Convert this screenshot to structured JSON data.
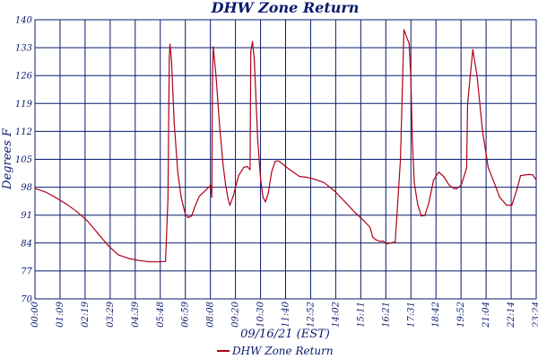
{
  "chart_data": {
    "type": "line",
    "title": "DHW Zone Return",
    "xlabel": "09/16/21 (EST)",
    "ylabel": "Degrees F",
    "ylim": [
      70,
      140
    ],
    "yticks": [
      "70",
      "77",
      "84",
      "91",
      "98",
      "105",
      "112",
      "119",
      "126",
      "133",
      "140"
    ],
    "xticks": [
      "00:00",
      "01:09",
      "02:19",
      "03:29",
      "04:39",
      "05:48",
      "06:59",
      "08:08",
      "09:20",
      "10:30",
      "11:40",
      "12:52",
      "14:02",
      "15:11",
      "16:21",
      "17:31",
      "18:42",
      "19:52",
      "21:04",
      "22:14",
      "23:24"
    ],
    "xlim_minutes": [
      0,
      1440
    ],
    "grid": true,
    "legend": "bottom-center",
    "colors": {
      "series": "#b00018",
      "grid": "#0b1a6e",
      "text": "#0b1a6e"
    },
    "series": [
      {
        "name": "DHW Zone Return",
        "x": [
          0,
          30,
          60,
          90,
          120,
          150,
          180,
          210,
          240,
          270,
          300,
          330,
          360,
          375,
          382,
          386,
          388,
          392,
          400,
          410,
          420,
          432,
          440,
          450,
          460,
          472,
          505,
          508,
          510,
          512,
          520,
          530,
          540,
          548,
          555,
          560,
          570,
          585,
          600,
          610,
          618,
          620,
          625,
          630,
          640,
          648,
          655,
          662,
          670,
          680,
          690,
          700,
          720,
          740,
          760,
          780,
          800,
          830,
          860,
          890,
          920,
          945,
          962,
          966,
          970,
          978,
          990,
          1000,
          1012,
          1022,
          1035,
          1050,
          1060,
          1075,
          1080,
          1084,
          1090,
          1100,
          1110,
          1120,
          1132,
          1145,
          1160,
          1175,
          1190,
          1203,
          1211,
          1225,
          1240,
          1243,
          1258,
          1270,
          1286,
          1302,
          1320,
          1335,
          1355,
          1370,
          1385,
          1395,
          1418,
          1430,
          1440
        ],
        "y": [
          97.7,
          96.8,
          95.4,
          93.8,
          91.9,
          89.6,
          86.5,
          83.4,
          81,
          80.1,
          79.6,
          79.3,
          79.3,
          79.4,
          95,
          130.5,
          133.8,
          130,
          114,
          102,
          95.5,
          91.2,
          90.4,
          90.8,
          93.3,
          95.7,
          98.5,
          95.5,
          126,
          133.2,
          126,
          114,
          104,
          98.5,
          95,
          93.5,
          95.9,
          100.9,
          103,
          103.2,
          102.4,
          132,
          134.5,
          130,
          110,
          100,
          95.5,
          94.3,
          96.4,
          101.9,
          104.5,
          104.6,
          103.2,
          101.9,
          100.7,
          100.5,
          100.1,
          99.2,
          97.1,
          94.4,
          91.6,
          89.6,
          88,
          86.9,
          85.6,
          84.9,
          84.4,
          84.5,
          83.8,
          84,
          84.3,
          105,
          137.5,
          134,
          125,
          110,
          99,
          93.5,
          90.8,
          90.9,
          94.2,
          99.8,
          101.8,
          100.6,
          98.5,
          97.7,
          97.6,
          98.6,
          102.8,
          119,
          132.5,
          126,
          112,
          103,
          99,
          95.5,
          93.5,
          93.5,
          97.5,
          100.9,
          101.2,
          101.1,
          99.8
        ]
      }
    ]
  }
}
